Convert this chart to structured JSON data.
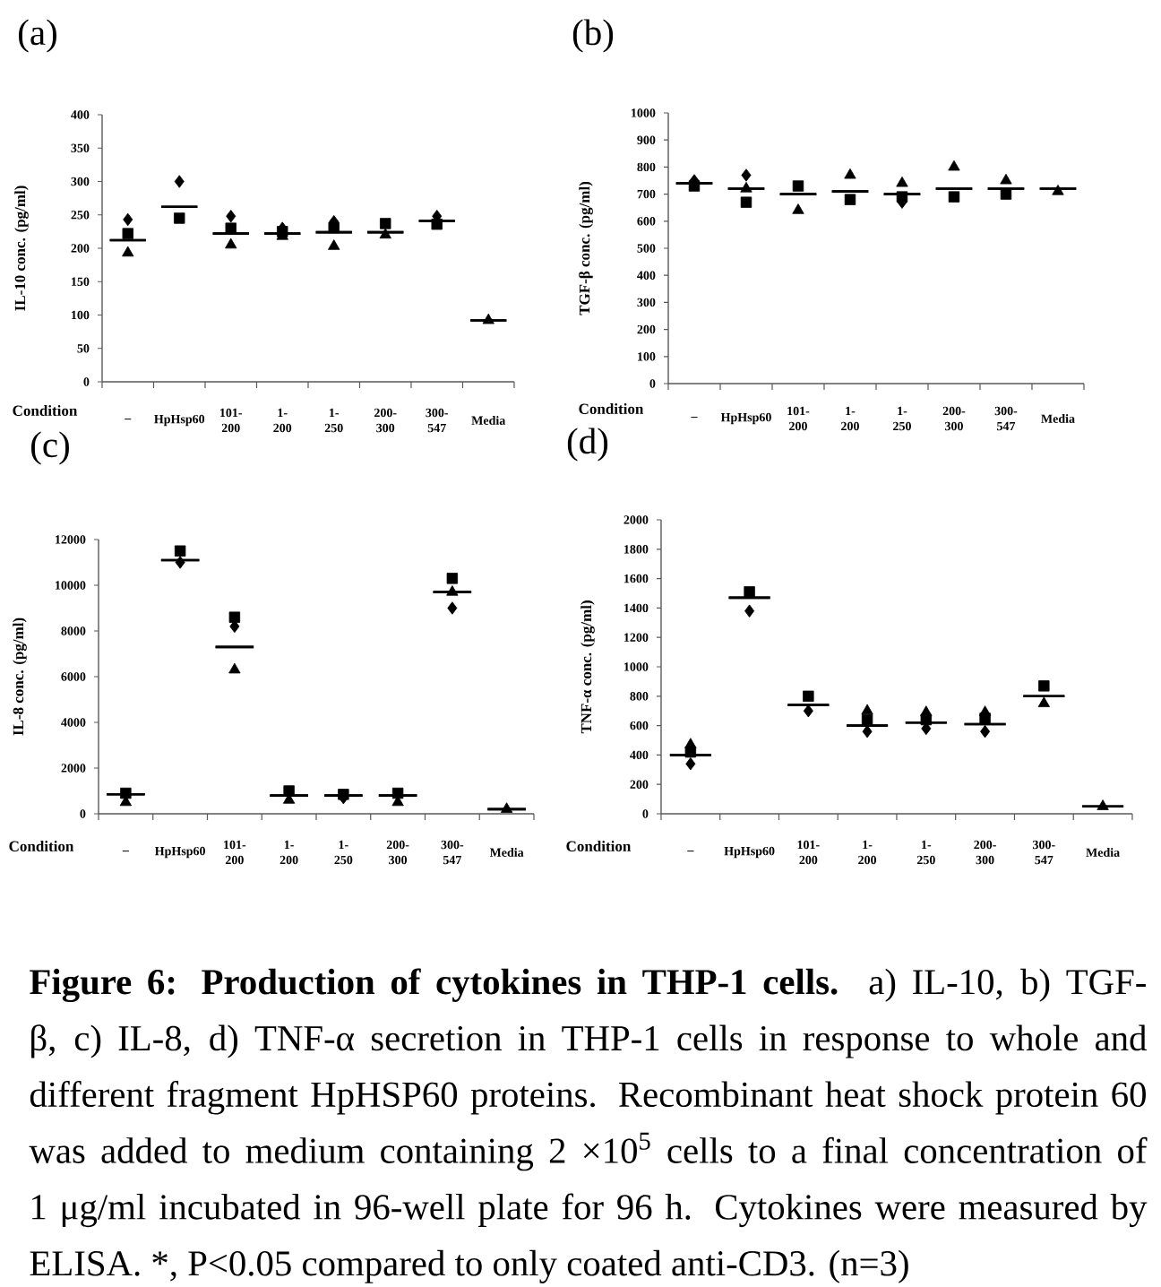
{
  "chart_data": [
    {
      "type": "scatter",
      "title": "(a)",
      "xlabel": "Condition",
      "ylabel": "IL-10 conc. (pg/ml)",
      "categories": [
        "–",
        "HpHsp60",
        "101-200",
        "1-200",
        "1-250",
        "200-300",
        "300-547",
        "Media"
      ],
      "ylim": [
        0,
        400
      ],
      "yticks": [
        0,
        50,
        100,
        150,
        200,
        250,
        300,
        350,
        400
      ],
      "series": [
        {
          "color": "#000000",
          "marker": "diamond",
          "values": [
            243,
            300,
            248,
            230,
            240,
            null,
            248,
            null
          ]
        },
        {
          "color": "#000000",
          "marker": "square",
          "values": [
            222,
            245,
            230,
            225,
            231,
            237,
            236,
            null
          ]
        },
        {
          "color": "#000000",
          "marker": "triangle",
          "values": [
            193,
            null,
            205,
            218,
            203,
            220,
            null,
            92
          ]
        },
        {
          "type": "box",
          "color": "#000000",
          "boxes": [
            {
              "low": 212,
              "q1": 212,
              "median": 212,
              "q3": 212,
              "high": 212
            },
            {
              "low": 262,
              "q1": 262,
              "median": 262,
              "q3": 262,
              "high": 262
            },
            {
              "low": 222,
              "q1": 222,
              "median": 222,
              "q3": 222,
              "high": 222
            },
            {
              "low": 222,
              "q1": 222,
              "median": 222,
              "q3": 222,
              "high": 222
            },
            {
              "low": 224,
              "q1": 224,
              "median": 224,
              "q3": 224,
              "high": 224
            },
            {
              "low": 224,
              "q1": 224,
              "median": 224,
              "q3": 224,
              "high": 224
            },
            {
              "low": 241,
              "q1": 241,
              "median": 241,
              "q3": 241,
              "high": 241
            },
            {
              "low": 92,
              "q1": 92,
              "median": 92,
              "q3": 92,
              "high": 92
            }
          ]
        }
      ]
    },
    {
      "type": "scatter",
      "title": "(b)",
      "xlabel": "Condition",
      "ylabel": "TGF-β conc. (pg/ml)",
      "categories": [
        "–",
        "HpHsp60",
        "101-200",
        "1-200",
        "1-250",
        "200-300",
        "300-547",
        "Media"
      ],
      "ylim": [
        0,
        1000
      ],
      "yticks": [
        0,
        100,
        200,
        300,
        400,
        500,
        600,
        700,
        800,
        900,
        1000
      ],
      "series": [
        {
          "color": "#000000",
          "marker": "diamond",
          "values": [
            750,
            770,
            null,
            null,
            670,
            null,
            null,
            null
          ]
        },
        {
          "color": "#000000",
          "marker": "square",
          "values": [
            730,
            670,
            730,
            680,
            690,
            690,
            700,
            null
          ]
        },
        {
          "color": "#000000",
          "marker": "triangle",
          "values": [
            null,
            720,
            640,
            770,
            740,
            800,
            750,
            710
          ]
        },
        {
          "type": "box",
          "color": "#000000",
          "boxes": [
            {
              "low": 740,
              "q1": 740,
              "median": 740,
              "q3": 740,
              "high": 740
            },
            {
              "low": 720,
              "q1": 720,
              "median": 720,
              "q3": 720,
              "high": 720
            },
            {
              "low": 700,
              "q1": 700,
              "median": 700,
              "q3": 700,
              "high": 700
            },
            {
              "low": 710,
              "q1": 710,
              "median": 710,
              "q3": 710,
              "high": 710
            },
            {
              "low": 700,
              "q1": 700,
              "median": 700,
              "q3": 700,
              "high": 700
            },
            {
              "low": 720,
              "q1": 720,
              "median": 720,
              "q3": 720,
              "high": 720
            },
            {
              "low": 720,
              "q1": 720,
              "median": 720,
              "q3": 720,
              "high": 720
            },
            {
              "low": 720,
              "q1": 720,
              "median": 720,
              "q3": 720,
              "high": 720
            }
          ]
        }
      ]
    },
    {
      "type": "scatter",
      "title": "(c)",
      "xlabel": "Condition",
      "ylabel": "IL-8 conc. (pg/ml)",
      "categories": [
        "–",
        "HpHsp60",
        "101-200",
        "1-200",
        "1-250",
        "200-300",
        "300-547",
        "Media"
      ],
      "ylim": [
        0,
        12000
      ],
      "yticks": [
        0,
        2000,
        4000,
        6000,
        8000,
        10000,
        12000
      ],
      "series": [
        {
          "color": "#000000",
          "marker": "diamond",
          "values": [
            null,
            11000,
            8200,
            null,
            700,
            null,
            9000,
            null
          ]
        },
        {
          "color": "#000000",
          "marker": "square",
          "values": [
            900,
            11500,
            8600,
            1000,
            850,
            900,
            10300,
            null
          ]
        },
        {
          "color": "#000000",
          "marker": "triangle",
          "values": [
            500,
            null,
            6300,
            600,
            null,
            500,
            9700,
            200
          ]
        },
        {
          "type": "box",
          "color": "#000000",
          "boxes": [
            {
              "low": 850,
              "q1": 850,
              "median": 850,
              "q3": 850,
              "high": 850
            },
            {
              "low": 11100,
              "q1": 11100,
              "median": 11100,
              "q3": 11100,
              "high": 11100
            },
            {
              "low": 7300,
              "q1": 7300,
              "median": 7300,
              "q3": 7300,
              "high": 7300
            },
            {
              "low": 800,
              "q1": 800,
              "median": 800,
              "q3": 800,
              "high": 800
            },
            {
              "low": 800,
              "q1": 800,
              "median": 800,
              "q3": 800,
              "high": 800
            },
            {
              "low": 800,
              "q1": 800,
              "median": 800,
              "q3": 800,
              "high": 800
            },
            {
              "low": 9700,
              "q1": 9700,
              "median": 9700,
              "q3": 9700,
              "high": 9700
            },
            {
              "low": 200,
              "q1": 200,
              "median": 200,
              "q3": 200,
              "high": 200
            }
          ]
        }
      ]
    },
    {
      "type": "scatter",
      "title": "(d)",
      "xlabel": "Condition",
      "ylabel": "TNF-α conc. (pg/ml)",
      "categories": [
        "–",
        "HpHsp60",
        "101-200",
        "1-200",
        "1-250",
        "200-300",
        "300-547",
        "Media"
      ],
      "ylim": [
        0,
        2000
      ],
      "yticks": [
        0,
        200,
        400,
        600,
        800,
        1000,
        1200,
        1400,
        1600,
        1800,
        2000
      ],
      "series": [
        {
          "color": "#000000",
          "marker": "diamond",
          "values": [
            340,
            1380,
            700,
            560,
            580,
            560,
            null,
            null
          ]
        },
        {
          "color": "#000000",
          "marker": "square",
          "values": [
            420,
            1510,
            800,
            640,
            640,
            650,
            870,
            null
          ]
        },
        {
          "color": "#000000",
          "marker": "triangle",
          "values": [
            470,
            null,
            null,
            700,
            690,
            690,
            750,
            50
          ]
        },
        {
          "type": "box",
          "color": "#000000",
          "boxes": [
            {
              "low": 400,
              "q1": 400,
              "median": 400,
              "q3": 400,
              "high": 400
            },
            {
              "low": 1470,
              "q1": 1470,
              "median": 1470,
              "q3": 1470,
              "high": 1470
            },
            {
              "low": 740,
              "q1": 740,
              "median": 740,
              "q3": 740,
              "high": 740
            },
            {
              "low": 600,
              "q1": 600,
              "median": 600,
              "q3": 600,
              "high": 600
            },
            {
              "low": 620,
              "q1": 620,
              "median": 620,
              "q3": 620,
              "high": 620
            },
            {
              "low": 610,
              "q1": 610,
              "median": 610,
              "q3": 610,
              "high": 610
            },
            {
              "low": 800,
              "q1": 800,
              "median": 800,
              "q3": 800,
              "high": 800
            },
            {
              "low": 50,
              "q1": 50,
              "median": 50,
              "q3": 50,
              "high": 50
            }
          ]
        }
      ],
      "annotations": [
        "**Figure 6: Production of cytokines in THP-1 cells.** a) IL-10, b) TGF-β, c) IL-8, d) TNF-α secretion in THP-1 cells in response to whole and different fragment HpHSP60 proteins. Recombinant heat shock protein 60 was added to medium containing 2 ×10$^{5}$ cells to a final concentration of 1 μg/ml incubated in 96-well plate for 96 h. Cytokines were measured by ELISA. *, P<0.05 compared to only coated anti-CD3. (n=3)"
      ]
    }
  ]
}
